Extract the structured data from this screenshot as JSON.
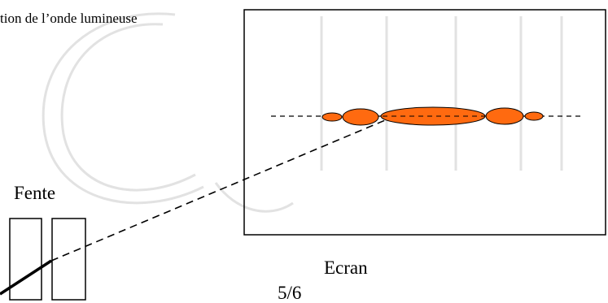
{
  "labels": {
    "wave": "tion de l’onde lumineuse",
    "slit": "Fente",
    "screen": "Ecran",
    "page": "5/6"
  },
  "colors": {
    "fringe_fill": "#ff6a10",
    "fringe_stroke": "#000000",
    "watermark": "#e4e4e4"
  }
}
